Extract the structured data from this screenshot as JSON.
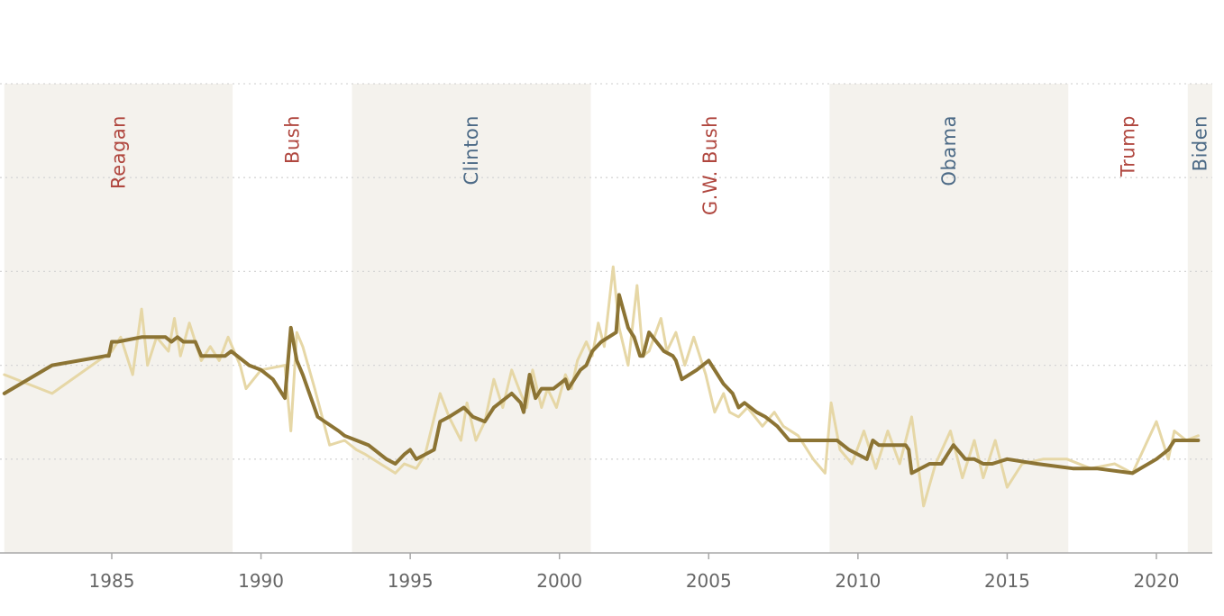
{
  "chart_data": {
    "type": "line",
    "title": "",
    "xlabel": "",
    "ylabel": "",
    "xlim": [
      1981.4,
      1982.0
    ],
    "x_range": [
      1981.4,
      2021.9
    ],
    "ylim": [
      0,
      5
    ],
    "grid": true,
    "legend": "none",
    "x_ticks": [
      1985,
      1990,
      1995,
      2000,
      2005,
      2010,
      2015,
      2020
    ],
    "y_gridlines": [
      1,
      2,
      3,
      4,
      5
    ],
    "colors": {
      "raw_series": "#e6d7a6",
      "smoothed_series": "#8c7434",
      "shade": "#f4f2ed",
      "republican": "#b0473f",
      "democrat": "#4c6a86",
      "axis": "#a8a8a8",
      "tick_text": "#666666"
    },
    "presidencies": [
      {
        "name": "Reagan",
        "start": 1981.4,
        "end": 1989.05,
        "party": "republican",
        "shaded": true
      },
      {
        "name": "Bush",
        "start": 1989.05,
        "end": 1993.05,
        "party": "republican",
        "shaded": false
      },
      {
        "name": "Clinton",
        "start": 1993.05,
        "end": 2001.05,
        "party": "democrat",
        "shaded": true
      },
      {
        "name": "G.W. Bush",
        "start": 2001.05,
        "end": 2009.05,
        "party": "republican",
        "shaded": false
      },
      {
        "name": "Obama",
        "start": 2009.05,
        "end": 2017.05,
        "party": "democrat",
        "shaded": true
      },
      {
        "name": "Trump",
        "start": 2017.05,
        "end": 2021.05,
        "party": "republican",
        "shaded": false
      },
      {
        "name": "Biden",
        "start": 2021.05,
        "end": 2021.9,
        "party": "democrat",
        "shaded": true
      }
    ],
    "series": [
      {
        "role": "raw",
        "x": [
          1981.4,
          1983.0,
          1985.0,
          1985.3,
          1985.7,
          1986.0,
          1986.2,
          1986.5,
          1986.9,
          1987.1,
          1987.3,
          1987.6,
          1988.0,
          1988.3,
          1988.6,
          1988.9,
          1989.3,
          1989.5,
          1990.0,
          1990.8,
          1991.0,
          1991.2,
          1991.4,
          1991.8,
          1992.3,
          1992.8,
          1993.2,
          1993.5,
          1994.0,
          1994.5,
          1994.8,
          1995.2,
          1995.5,
          1996.0,
          1996.3,
          1996.7,
          1996.9,
          1997.2,
          1997.5,
          1997.8,
          1998.1,
          1998.4,
          1998.7,
          1998.9,
          1999.1,
          1999.4,
          1999.6,
          1999.9,
          2000.2,
          2000.4,
          2000.6,
          2000.9,
          2001.1,
          2001.3,
          2001.5,
          2001.8,
          2002.0,
          2002.3,
          2002.6,
          2002.8,
          2003.0,
          2003.4,
          2003.6,
          2003.9,
          2004.2,
          2004.5,
          2004.9,
          2005.2,
          2005.5,
          2005.7,
          2006.0,
          2006.3,
          2006.8,
          2007.2,
          2007.5,
          2008.0,
          2008.5,
          2008.9,
          2009.1,
          2009.4,
          2009.8,
          2010.2,
          2010.6,
          2011.0,
          2011.4,
          2011.8,
          2012.2,
          2012.6,
          2013.1,
          2013.5,
          2013.9,
          2014.2,
          2014.6,
          2015.0,
          2015.5,
          2016.2,
          2017.0,
          2017.8,
          2018.6,
          2019.2,
          2020.0,
          2020.4,
          2020.6,
          2021.0,
          2021.4
        ],
        "y": [
          1.9,
          1.7,
          2.15,
          2.3,
          1.9,
          2.6,
          2.0,
          2.3,
          2.15,
          2.5,
          2.1,
          2.45,
          2.05,
          2.2,
          2.05,
          2.3,
          2.0,
          1.75,
          1.95,
          2.0,
          1.3,
          2.35,
          2.2,
          1.75,
          1.15,
          1.2,
          1.1,
          1.05,
          0.95,
          0.85,
          0.95,
          0.9,
          1.05,
          1.7,
          1.45,
          1.2,
          1.6,
          1.2,
          1.4,
          1.85,
          1.55,
          1.95,
          1.7,
          1.55,
          1.95,
          1.55,
          1.75,
          1.55,
          1.9,
          1.75,
          2.05,
          2.25,
          2.1,
          2.45,
          2.2,
          3.05,
          2.4,
          2.0,
          2.85,
          2.1,
          2.15,
          2.5,
          2.15,
          2.35,
          2.0,
          2.3,
          1.9,
          1.5,
          1.7,
          1.5,
          1.45,
          1.55,
          1.35,
          1.5,
          1.35,
          1.25,
          1.0,
          0.85,
          1.6,
          1.1,
          0.95,
          1.3,
          0.9,
          1.3,
          0.95,
          1.45,
          0.5,
          0.95,
          1.3,
          0.8,
          1.2,
          0.8,
          1.2,
          0.7,
          0.95,
          1.0,
          1.0,
          0.9,
          0.95,
          0.85,
          1.4,
          1.0,
          1.3,
          1.2,
          1.25
        ]
      },
      {
        "role": "smoothed",
        "x": [
          1981.4,
          1983.0,
          1984.8,
          1984.9,
          1985.0,
          1985.1,
          1985.2,
          1986.0,
          1986.8,
          1987.0,
          1987.2,
          1987.4,
          1987.8,
          1988.0,
          1988.3,
          1988.8,
          1989.0,
          1989.6,
          1990.0,
          1990.4,
          1990.8,
          1991.0,
          1991.2,
          1991.4,
          1991.9,
          1992.6,
          1992.8,
          1993.2,
          1993.6,
          1994.0,
          1994.2,
          1994.5,
          1994.8,
          1995.0,
          1995.2,
          1995.5,
          1995.8,
          1996.0,
          1996.3,
          1996.8,
          1997.1,
          1997.5,
          1997.8,
          1998.0,
          1998.4,
          1998.7,
          1998.8,
          1999.0,
          1999.2,
          1999.4,
          1999.8,
          2000.0,
          2000.2,
          2000.3,
          2000.7,
          2000.9,
          2001.1,
          2001.4,
          2001.9,
          2002.0,
          2002.3,
          2002.5,
          2002.7,
          2002.8,
          2003.0,
          2003.5,
          2003.8,
          2003.9,
          2004.1,
          2004.6,
          2005.0,
          2005.3,
          2005.5,
          2005.8,
          2006.0,
          2006.2,
          2006.6,
          2006.9,
          2007.1,
          2007.3,
          2007.7,
          2008.4,
          2008.9,
          2009.3,
          2009.7,
          2010.0,
          2010.3,
          2010.5,
          2010.7,
          2011.0,
          2011.3,
          2011.6,
          2011.7,
          2011.8,
          2012.4,
          2012.8,
          2013.0,
          2013.2,
          2013.6,
          2013.9,
          2014.2,
          2014.5,
          2015.0,
          2016.0,
          2017.2,
          2017.6,
          2018.0,
          2019.2,
          2020.0,
          2020.4,
          2020.6,
          2021.0,
          2021.4
        ],
        "y": [
          1.7,
          2.0,
          2.1,
          2.1,
          2.25,
          2.25,
          2.25,
          2.3,
          2.3,
          2.25,
          2.3,
          2.25,
          2.25,
          2.1,
          2.1,
          2.1,
          2.15,
          2.0,
          1.95,
          1.85,
          1.65,
          2.4,
          2.05,
          1.9,
          1.45,
          1.3,
          1.25,
          1.2,
          1.15,
          1.05,
          1.0,
          0.95,
          1.05,
          1.1,
          1.0,
          1.05,
          1.1,
          1.4,
          1.45,
          1.55,
          1.45,
          1.4,
          1.55,
          1.6,
          1.7,
          1.6,
          1.5,
          1.9,
          1.65,
          1.75,
          1.75,
          1.8,
          1.85,
          1.75,
          1.95,
          2.0,
          2.15,
          2.25,
          2.35,
          2.75,
          2.4,
          2.3,
          2.1,
          2.1,
          2.35,
          2.15,
          2.1,
          2.05,
          1.85,
          1.95,
          2.05,
          1.9,
          1.8,
          1.7,
          1.55,
          1.6,
          1.5,
          1.45,
          1.4,
          1.35,
          1.2,
          1.2,
          1.2,
          1.2,
          1.1,
          1.05,
          1.0,
          1.2,
          1.15,
          1.15,
          1.15,
          1.15,
          1.1,
          0.85,
          0.95,
          0.95,
          1.05,
          1.15,
          1.0,
          1.0,
          0.95,
          0.95,
          1.0,
          0.95,
          0.9,
          0.9,
          0.9,
          0.85,
          1.0,
          1.1,
          1.2,
          1.2,
          1.2
        ]
      }
    ]
  }
}
